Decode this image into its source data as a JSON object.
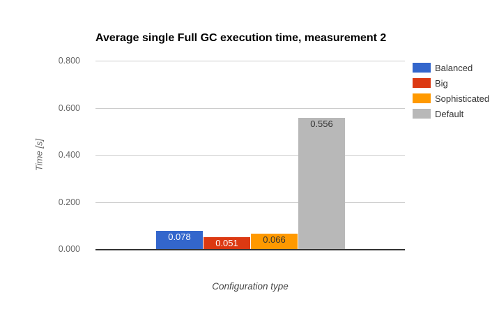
{
  "chart_data": {
    "type": "bar",
    "title": "Average single Full GC execution time, measurement 2",
    "xlabel": "Configuration type",
    "ylabel": "Time [s]",
    "categories": [
      "Balanced",
      "Big",
      "Sophisticated",
      "Default"
    ],
    "values": [
      0.078,
      0.051,
      0.066,
      0.556
    ],
    "value_labels": [
      "0.078",
      "0.051",
      "0.066",
      "0.556"
    ],
    "colors": [
      "#3366CC",
      "#DC3912",
      "#FF9900",
      "#B8B8B8"
    ],
    "annotation_colors": [
      "#FFFFFF",
      "#FFFFFF",
      "#333333",
      "#333333"
    ],
    "ylim": [
      0,
      0.8
    ],
    "yticks": [
      {
        "value": 0.0,
        "label": "0.000"
      },
      {
        "value": 0.2,
        "label": "0.200"
      },
      {
        "value": 0.4,
        "label": "0.400"
      },
      {
        "value": 0.6,
        "label": "0.600"
      },
      {
        "value": 0.8,
        "label": "0.800"
      }
    ],
    "grid": true,
    "legend_position": "right",
    "legend": [
      {
        "label": "Balanced",
        "color": "#3366CC"
      },
      {
        "label": "Big",
        "color": "#DC3912"
      },
      {
        "label": "Sophisticated",
        "color": "#FF9900"
      },
      {
        "label": "Default",
        "color": "#B8B8B8"
      }
    ],
    "colors_meta": {
      "gridline": "#CCCCCC",
      "axis_line": "#333333",
      "tick_text": "#666666",
      "title_text": "#000000"
    }
  }
}
